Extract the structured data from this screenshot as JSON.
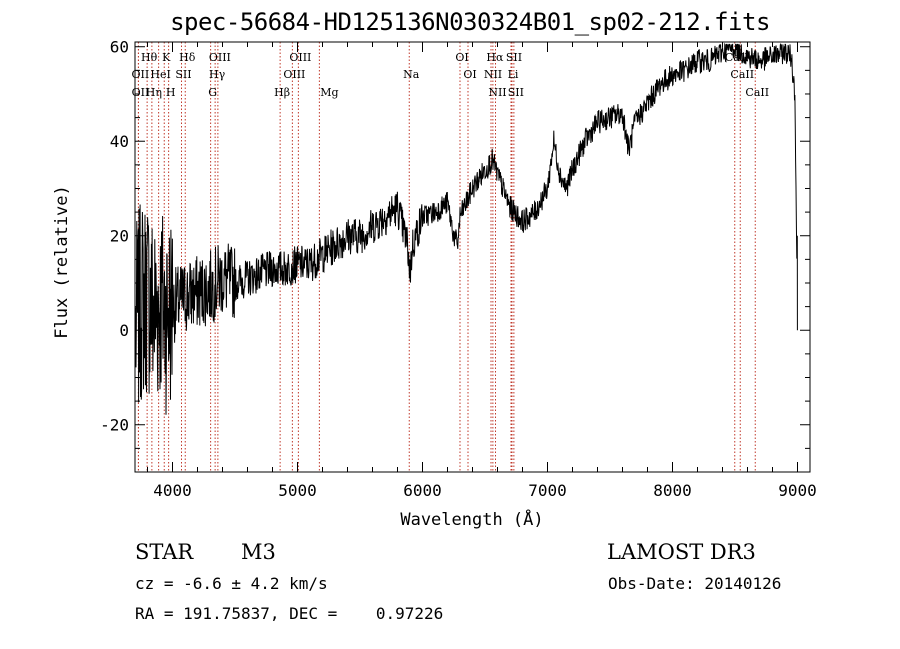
{
  "chart_data": {
    "type": "line",
    "title": "spec-56684-HD125136N030324B01_sp02-212.fits",
    "xlabel": "Wavelength (Å)",
    "ylabel": "Flux (relative)",
    "xlim": [
      3700,
      9100
    ],
    "ylim": [
      -30,
      61
    ],
    "xticks": [
      4000,
      5000,
      6000,
      7000,
      8000,
      9000
    ],
    "yticks": [
      -20,
      0,
      20,
      40,
      60
    ],
    "series": [
      {
        "name": "spectrum",
        "x": [
          3700,
          3750,
          3800,
          3850,
          3900,
          3950,
          4000,
          4100,
          4200,
          4300,
          4400,
          4500,
          4600,
          4700,
          4800,
          4900,
          5000,
          5100,
          5200,
          5300,
          5400,
          5500,
          5600,
          5700,
          5800,
          5880,
          5900,
          5920,
          6000,
          6100,
          6200,
          6250,
          6280,
          6300,
          6400,
          6500,
          6560,
          6600,
          6700,
          6800,
          6900,
          7000,
          7050,
          7100,
          7150,
          7200,
          7300,
          7400,
          7500,
          7600,
          7650,
          7700,
          7800,
          7900,
          8000,
          8100,
          8200,
          8300,
          8400,
          8500,
          8600,
          8700,
          8800,
          8900,
          8950,
          8980,
          9000
        ],
        "y": [
          0,
          6,
          8,
          4,
          6,
          4,
          5,
          7,
          8,
          9,
          11,
          10,
          11,
          12,
          13,
          13,
          14,
          14,
          16,
          18,
          20,
          20,
          22,
          24,
          26,
          18,
          12,
          18,
          24,
          25,
          27,
          20,
          18,
          24,
          30,
          34,
          36,
          33,
          26,
          23,
          25,
          30,
          40,
          33,
          30,
          34,
          40,
          44,
          45,
          46,
          38,
          44,
          48,
          52,
          54,
          55,
          57,
          57,
          59,
          60,
          58,
          57,
          58,
          59,
          58,
          50,
          0
        ]
      }
    ],
    "lines": [
      {
        "label": "Hθ",
        "x": 3797
      },
      {
        "label": "K",
        "x": 3934
      },
      {
        "label": "Hδ",
        "x": 4102
      },
      {
        "label": "OII",
        "x": 3727
      },
      {
        "label": "HeI",
        "x": 3889
      },
      {
        "label": "SII",
        "x": 4072
      },
      {
        "label": "OII",
        "x": 3728
      },
      {
        "label": "Hη",
        "x": 3835
      },
      {
        "label": "H",
        "x": 3969
      },
      {
        "label": "OIII",
        "x": 4363
      },
      {
        "label": "Hγ",
        "x": 4341
      },
      {
        "label": "G",
        "x": 4305
      },
      {
        "label": "Hβ",
        "x": 4861
      },
      {
        "label": "OIII",
        "x": 5007
      },
      {
        "label": "OIII",
        "x": 4959
      },
      {
        "label": "Mg",
        "x": 5175
      },
      {
        "label": "Na",
        "x": 5894
      },
      {
        "label": "OI",
        "x": 6300
      },
      {
        "label": "OI",
        "x": 6364
      },
      {
        "label": "Hα",
        "x": 6563
      },
      {
        "label": "NII",
        "x": 6548
      },
      {
        "label": "NII",
        "x": 6584
      },
      {
        "label": "SII",
        "x": 6716
      },
      {
        "label": "SII",
        "x": 6731
      },
      {
        "label": "Li",
        "x": 6708
      },
      {
        "label": "CaII",
        "x": 8498
      },
      {
        "label": "CaII",
        "x": 8542
      },
      {
        "label": "CaII",
        "x": 8662
      }
    ]
  },
  "info": {
    "class": "STAR",
    "subclass": "M3",
    "survey": "LAMOST DR3",
    "cz": "cz = -6.6 ± 4.2 km/s",
    "obs_date": "Obs-Date: 20140126",
    "radec": "RA = 191.75837, DEC =    0.97226"
  }
}
